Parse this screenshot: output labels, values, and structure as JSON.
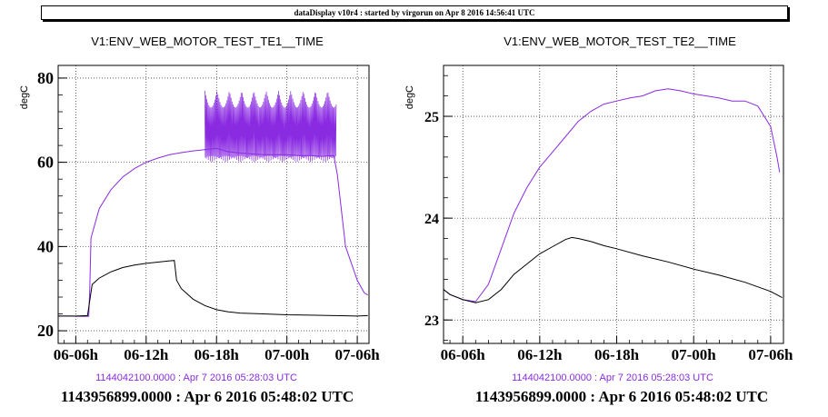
{
  "banner": "dataDisplay v10r4 : started by virgorun on Apr  8 2016 14:56:41 UTC",
  "colors": {
    "series_te": "#8a2be2",
    "series_ref": "#000000",
    "label_purple": "#8a2be2"
  },
  "chart_data": [
    {
      "type": "line",
      "title": "V1:ENV_WEB_MOTOR_TEST_TE1__TIME",
      "ylabel": "degC",
      "xlabel": "",
      "ylim": [
        17,
        83
      ],
      "yticks": [
        "20",
        "40",
        "60",
        "80"
      ],
      "x_ticks": [
        "06-06h",
        "06-12h",
        "06-18h",
        "07-00h",
        "07-06h"
      ],
      "x_tick_hours": [
        6,
        12,
        18,
        24,
        30
      ],
      "xlim_hours": [
        4.5,
        31.0
      ],
      "grid": true,
      "gps_start_label": "1143956899.0000 : Apr  6 2016 05:48:02 UTC",
      "gps_end_label": "1144042100.0000 : Apr  7 2016 05:28:03 UTC",
      "series": [
        {
          "x_hours": [
            4.5,
            5.5,
            6.5,
            7.1,
            7.2,
            7.3,
            8.0,
            9.0,
            10.0,
            11.0,
            12.0,
            13.0,
            14.0,
            15.0,
            16.0,
            17.0,
            18.0,
            19.0,
            20.0,
            21.0,
            22.0,
            23.0,
            24.0,
            25.0,
            26.0,
            27.0,
            28.0,
            28.3,
            29.0,
            30.0,
            30.6,
            30.9
          ],
          "y": [
            23.5,
            23.5,
            23.4,
            23.4,
            30,
            42,
            49,
            53.5,
            56.5,
            58.5,
            60,
            61,
            61.8,
            62.3,
            62.7,
            63,
            63.3,
            62.5,
            62.2,
            62,
            61.8,
            61.8,
            61.8,
            61.6,
            61.6,
            61.4,
            61.6,
            57,
            40,
            32,
            29,
            28.5
          ],
          "osc_hours": [
            17.0,
            28.2
          ],
          "osc_range": [
            60,
            77
          ]
        },
        {
          "x_hours": [
            4.5,
            6.0,
            7.0,
            7.4,
            8.0,
            9.0,
            10.0,
            11.0,
            12.0,
            13.0,
            14.0,
            14.4,
            14.6,
            15.0,
            16.0,
            17.0,
            18.0,
            19.0,
            20.0,
            22.0,
            24.0,
            26.0,
            28.0,
            30.0,
            30.9
          ],
          "y": [
            23.5,
            23.5,
            23.6,
            31,
            32.5,
            34,
            35,
            35.6,
            36.0,
            36.3,
            36.6,
            36.7,
            32,
            30,
            27.5,
            26.0,
            25.0,
            24.5,
            24.2,
            24.0,
            23.8,
            23.7,
            23.6,
            23.5,
            23.6
          ]
        }
      ]
    },
    {
      "type": "line",
      "title": "V1:ENV_WEB_MOTOR_TEST_TE2__TIME",
      "ylabel": "degC",
      "xlabel": "",
      "ylim": [
        22.77,
        25.5
      ],
      "yticks": [
        "23",
        "24",
        "25"
      ],
      "x_ticks": [
        "06-06h",
        "06-12h",
        "06-18h",
        "07-00h",
        "07-06h"
      ],
      "x_tick_hours": [
        6,
        12,
        18,
        24,
        30
      ],
      "xlim_hours": [
        4.5,
        31.0
      ],
      "grid": true,
      "gps_start_label": "1143956899.0000 : Apr  6 2016 05:48:02 UTC",
      "gps_end_label": "1144042100.0000 : Apr  7 2016 05:28:03 UTC",
      "series": [
        {
          "x_hours": [
            4.5,
            5.0,
            6.0,
            7.0,
            8.0,
            9.0,
            10.0,
            11.0,
            12.0,
            13.0,
            14.0,
            15.0,
            16.0,
            17.0,
            18.0,
            19.0,
            20.0,
            21.0,
            22.0,
            23.0,
            24.0,
            25.0,
            26.0,
            27.0,
            28.0,
            29.0,
            30.0,
            30.5,
            30.7
          ],
          "y": [
            23.3,
            23.25,
            23.2,
            23.18,
            23.35,
            23.7,
            24.05,
            24.3,
            24.5,
            24.65,
            24.8,
            24.95,
            25.05,
            25.12,
            25.15,
            25.18,
            25.2,
            25.25,
            25.27,
            25.25,
            25.22,
            25.2,
            25.18,
            25.15,
            25.15,
            25.1,
            24.9,
            24.6,
            24.45
          ]
        },
        {
          "x_hours": [
            4.5,
            5.0,
            6.0,
            7.0,
            8.0,
            9.0,
            10.0,
            11.0,
            12.0,
            13.0,
            14.0,
            14.5,
            15.0,
            16.0,
            17.0,
            18.0,
            20.0,
            22.0,
            24.0,
            26.0,
            28.0,
            30.0,
            30.9
          ],
          "y": [
            23.3,
            23.25,
            23.2,
            23.17,
            23.2,
            23.3,
            23.45,
            23.55,
            23.65,
            23.72,
            23.79,
            23.81,
            23.8,
            23.77,
            23.73,
            23.7,
            23.63,
            23.57,
            23.5,
            23.44,
            23.37,
            23.28,
            23.22
          ]
        }
      ]
    }
  ]
}
